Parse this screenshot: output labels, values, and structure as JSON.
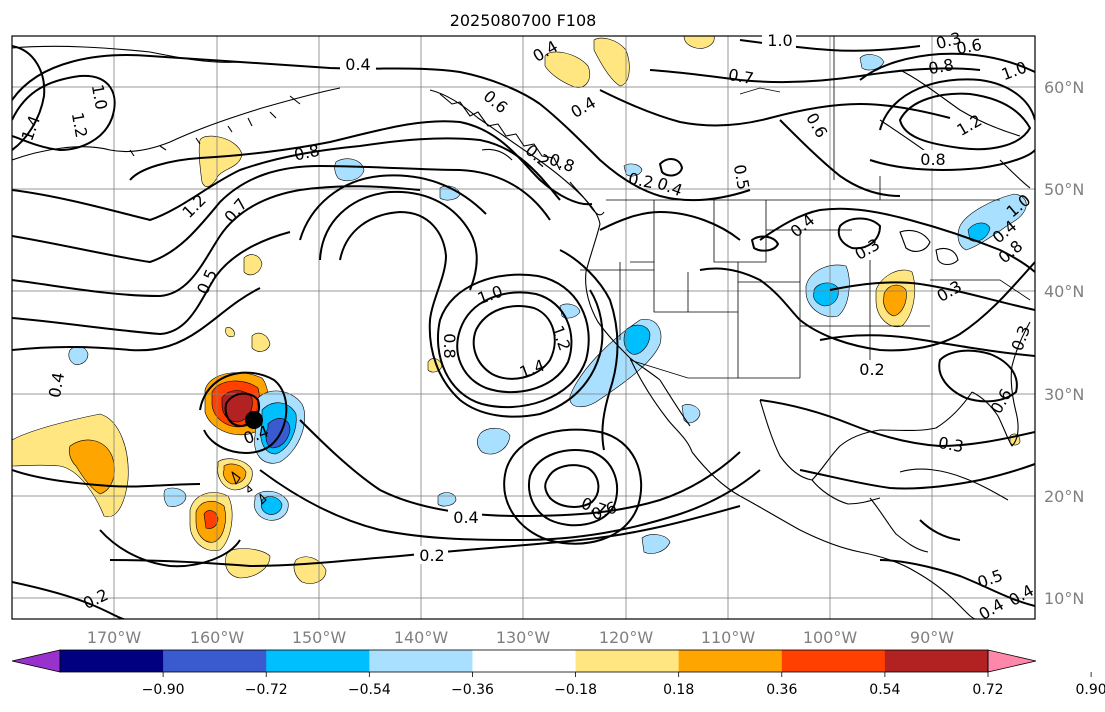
{
  "title": "2025080700 F108",
  "lon_ticks": [
    "170°W",
    "160°W",
    "150°W",
    "140°W",
    "130°W",
    "120°W",
    "110°W",
    "100°W",
    "90°W"
  ],
  "lat_ticks": [
    "60°N",
    "50°N",
    "40°N",
    "30°N",
    "20°N",
    "10°N"
  ],
  "colorbar": {
    "ticks": [
      "−0.90",
      "−0.72",
      "−0.54",
      "−0.36",
      "−0.18",
      "0.18",
      "0.36",
      "0.54",
      "0.72",
      "0.90"
    ],
    "colors": [
      "#9932cc",
      "#000080",
      "#3a5bcf",
      "#00bfff",
      "#aae0ff",
      "#ffffff",
      "#ffe680",
      "#ffa500",
      "#ff4000",
      "#b22222",
      "#ff88aa"
    ]
  },
  "contour_labels": [
    "0.4",
    "1.0",
    "1.2",
    "1.4",
    "0.8",
    "0.7",
    "0.5",
    "0.6",
    "0.8",
    "0.4",
    "0.4",
    "0.3",
    "0.2",
    "0.3",
    "0.4",
    "0.2",
    "0.4",
    "0.6",
    "0.7",
    "0.4",
    "1.0",
    "1.2",
    "1.4",
    "0.8",
    "0.4",
    "0.7",
    "0.6",
    "1.0",
    "1.2",
    "0.8",
    "0.4",
    "0.3",
    "0.2",
    "0.4",
    "0.5",
    "0.6",
    "0.8",
    "1.0",
    "1.2",
    "0.3",
    "0.5",
    "0.2",
    "0.6",
    "0.8",
    "0.3",
    "0.4",
    "0.2",
    "0.4",
    "1.0",
    "0.4"
  ]
}
